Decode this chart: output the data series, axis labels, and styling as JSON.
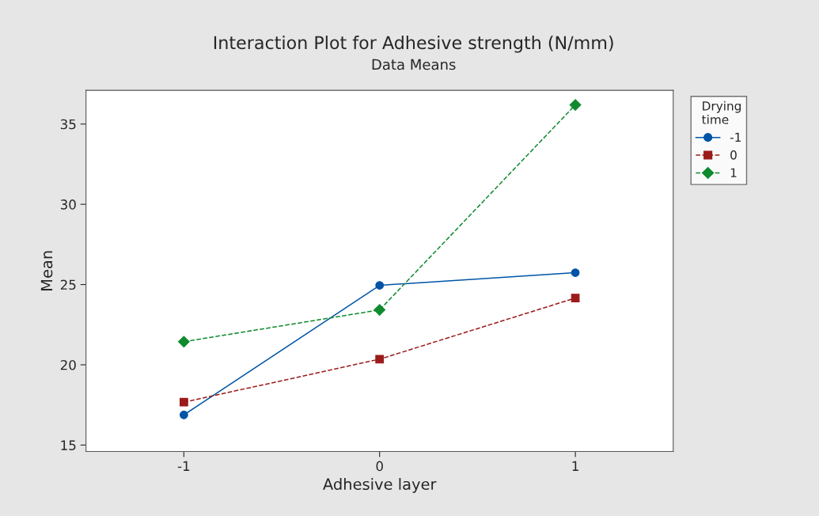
{
  "chart_data": {
    "type": "line",
    "title": "Interaction Plot for Adhesive strength (N/mm)",
    "subtitle": "Data Means",
    "xlabel": "Adhesive layer",
    "ylabel": "Mean",
    "legend_title": "Drying\ntime",
    "legend": "top right",
    "grid": false,
    "x": [
      -1,
      0,
      1
    ],
    "xlim": [
      -1.5,
      1.5
    ],
    "xticks": [
      -1,
      0,
      1
    ],
    "ylim": [
      14.6,
      37.1
    ],
    "yticks": [
      15,
      20,
      25,
      30,
      35
    ],
    "series": [
      {
        "name": "-1",
        "color": "#0054a6",
        "marker": "circle",
        "line_style": "solid",
        "values": [
          16.88,
          24.95,
          25.74
        ]
      },
      {
        "name": "0",
        "color": "#9b1b1b",
        "marker": "square",
        "line_style": "dashed",
        "values": [
          17.67,
          20.35,
          24.16
        ]
      },
      {
        "name": "1",
        "color": "#0f8a2e",
        "marker": "diamond",
        "line_style": "dashed",
        "values": [
          21.44,
          23.42,
          36.19
        ]
      }
    ]
  }
}
